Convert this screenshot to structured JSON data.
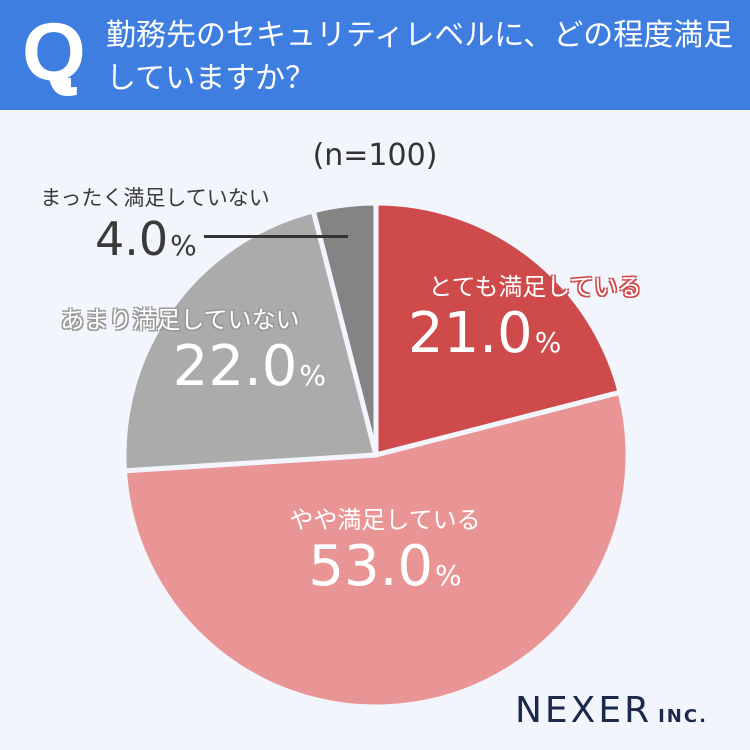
{
  "header": {
    "q_mark": "Q",
    "question": "勤務先のセキュリティレベルに、どの程度満足していますか？"
  },
  "sample": "(n=100)",
  "colors": {
    "header_bg": "#3F7EE1",
    "background": "#F2F5FC",
    "very_satisfied": "#CF4A4A",
    "somewhat_satisfied": "#E99595",
    "not_very_satisfied": "#ABABAB",
    "not_at_all_satisfied": "#848484"
  },
  "labels": {
    "s1": {
      "name": "とても満足している",
      "value": "21.0",
      "unit": "%"
    },
    "s2": {
      "name": "やや満足している",
      "value": "53.0",
      "unit": "%"
    },
    "s3": {
      "name": "あまり満足していない",
      "value": "22.0",
      "unit": "%"
    },
    "s4": {
      "name": "まったく満足していない",
      "value": "4.0",
      "unit": "%"
    }
  },
  "logo": {
    "name": "NEXER",
    "suffix": "INC."
  },
  "chart_data": {
    "type": "pie",
    "title": "勤務先のセキュリティレベルに、どの程度満足していますか？",
    "subtitle": "(n=100)",
    "categories": [
      "とても満足している",
      "やや満足している",
      "あまり満足していない",
      "まったく満足していない"
    ],
    "values": [
      21.0,
      53.0,
      22.0,
      4.0
    ],
    "unit": "%",
    "colors": [
      "#CF4A4A",
      "#E99595",
      "#ABABAB",
      "#848484"
    ],
    "start_angle": "12 o'clock",
    "direction": "clockwise"
  }
}
